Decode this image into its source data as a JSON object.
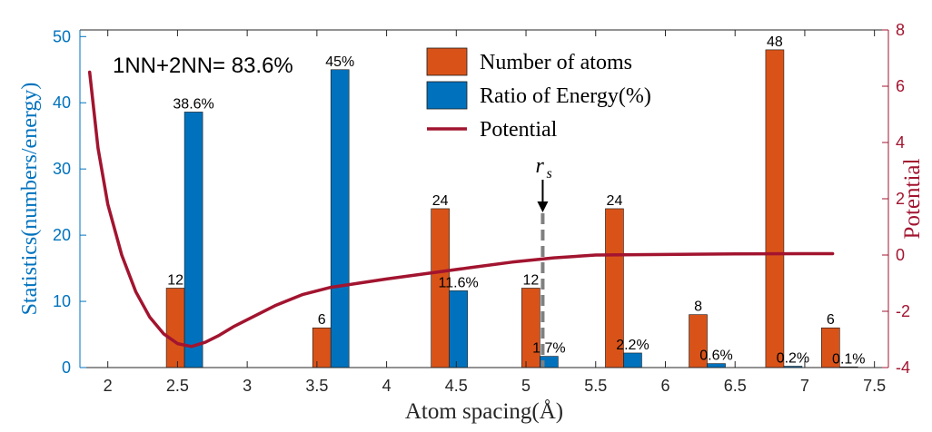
{
  "chart_data": {
    "type": "bar",
    "xlabel": "Atom spacing(Å)",
    "ylabel_left": "Statistics(numbers/energy)",
    "ylabel_right": "Potential",
    "xlim": [
      1.8,
      7.6
    ],
    "ylim_left": [
      0,
      51
    ],
    "ylim_right": [
      -4,
      8
    ],
    "x_ticks": [
      2,
      2.5,
      3,
      3.5,
      4,
      4.5,
      5,
      5.5,
      6,
      6.5,
      7,
      7.5
    ],
    "x_tick_labels": [
      "2",
      "2.5",
      "3",
      "3.5",
      "4",
      "4.5",
      "5",
      "5.5",
      "6",
      "6.5",
      "7",
      "7.5"
    ],
    "y_left_ticks": [
      0,
      10,
      20,
      30,
      40,
      50
    ],
    "y_left_tick_labels": [
      "0",
      "10",
      "20",
      "30",
      "40",
      "50"
    ],
    "y_right_ticks": [
      -4,
      -2,
      0,
      2,
      4,
      6,
      8
    ],
    "y_right_tick_labels": [
      "-4",
      "-2",
      "0",
      "2",
      "4",
      "6",
      "8"
    ],
    "positions": [
      2.55,
      3.6,
      4.45,
      5.1,
      5.7,
      6.3,
      6.85,
      7.25
    ],
    "series": [
      {
        "name": "Number of atoms",
        "color": "#D95319",
        "values": [
          12,
          6,
          24,
          12,
          24,
          8,
          48,
          6
        ],
        "labels": [
          "12",
          "6",
          "24",
          "12",
          "24",
          "8",
          "48",
          "6"
        ]
      },
      {
        "name": "Ratio of Energy(%)",
        "color": "#0072BD",
        "values": [
          38.6,
          45,
          11.6,
          1.7,
          2.2,
          0.6,
          0.2,
          0.1
        ],
        "labels": [
          "38.6%",
          "45%",
          "11.6%",
          "1.7%",
          "2.2%",
          "0.6%",
          "0.2%",
          "0.1%"
        ]
      }
    ],
    "potential": {
      "name": "Potential",
      "color": "#A2142F",
      "x": [
        1.87,
        1.93,
        2.0,
        2.1,
        2.2,
        2.3,
        2.4,
        2.5,
        2.6,
        2.7,
        2.8,
        2.9,
        3.0,
        3.2,
        3.4,
        3.6,
        3.8,
        4.0,
        4.3,
        4.6,
        4.9,
        5.2,
        5.5,
        6.0,
        6.5,
        7.0,
        7.2
      ],
      "y": [
        6.5,
        3.8,
        1.8,
        0.0,
        -1.3,
        -2.2,
        -2.8,
        -3.15,
        -3.25,
        -3.1,
        -2.85,
        -2.55,
        -2.3,
        -1.8,
        -1.4,
        -1.15,
        -1.0,
        -0.85,
        -0.65,
        -0.45,
        -0.25,
        -0.1,
        0.0,
        0.02,
        0.04,
        0.05,
        0.05
      ]
    },
    "annotations": {
      "summary": "1NN+2NN= 83.6%",
      "rs_label": "r",
      "rs_sub": "s",
      "rs_x": 5.12
    },
    "legend_position": "top-center",
    "grid": false
  },
  "colors": {
    "left_axis": "#0072BD",
    "right_axis": "#A2142F",
    "axis": "#262626",
    "rs_line": "#808080"
  }
}
